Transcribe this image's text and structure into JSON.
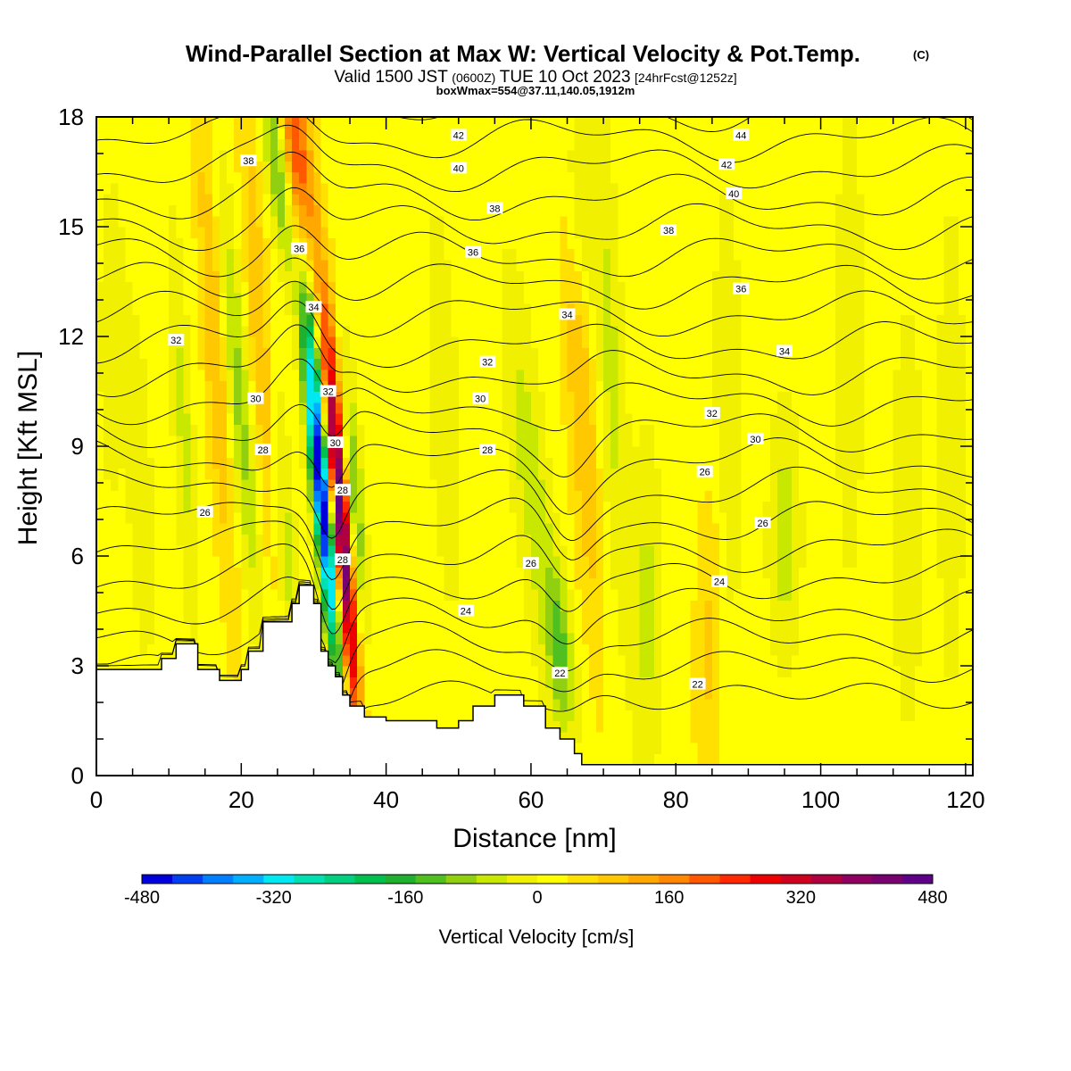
{
  "chart_data": {
    "type": "heatmap",
    "title": "Wind-Parallel Section at Max W: Vertical Velocity & Pot.Temp.",
    "title_mark": "(C)",
    "subtitle_main": "Valid 1500 JST",
    "subtitle_utc": "(0600Z)",
    "subtitle_date": "TUE 10 Oct 2023",
    "subtitle_run": "[24hrFcst@1252z]",
    "subtitle_box": "boxWmax=554@37.11,140.05,1912m",
    "xlabel": "Distance [nm]",
    "ylabel": "Height [Kft MSL]",
    "xlim": [
      0,
      121
    ],
    "ylim": [
      0,
      18
    ],
    "xticks": [
      "0",
      "20",
      "40",
      "60",
      "80",
      "100",
      "120"
    ],
    "yticks": [
      "0",
      "3",
      "6",
      "9",
      "12",
      "15",
      "18"
    ],
    "colorbar": {
      "label": "Vertical Velocity [cm/s]",
      "range": [
        -480,
        480
      ],
      "tick_labels": [
        "-480",
        "-320",
        "-160",
        "0",
        "160",
        "320",
        "480"
      ],
      "colors": [
        "#0000dd",
        "#0040f0",
        "#0080ff",
        "#00b0ff",
        "#00e8f0",
        "#00e0b0",
        "#00d080",
        "#00c050",
        "#20b030",
        "#50c020",
        "#90d010",
        "#c8e800",
        "#f0f000",
        "#ffff00",
        "#ffe000",
        "#ffc800",
        "#ffa800",
        "#ff8800",
        "#ff5800",
        "#ff2800",
        "#ee0000",
        "#d00020",
        "#b00040",
        "#900060",
        "#780070",
        "#600088"
      ]
    },
    "terrain": [
      [
        0,
        2.9
      ],
      [
        9,
        2.9
      ],
      [
        9,
        3.2
      ],
      [
        11,
        3.2
      ],
      [
        11,
        3.6
      ],
      [
        14,
        3.6
      ],
      [
        14,
        2.9
      ],
      [
        17,
        2.9
      ],
      [
        17,
        2.6
      ],
      [
        20,
        2.6
      ],
      [
        20,
        2.9
      ],
      [
        21,
        2.9
      ],
      [
        21,
        3.4
      ],
      [
        23,
        3.4
      ],
      [
        23,
        4.2
      ],
      [
        27,
        4.2
      ],
      [
        27,
        4.7
      ],
      [
        28,
        4.7
      ],
      [
        28,
        5.2
      ],
      [
        30,
        5.2
      ],
      [
        30,
        4.7
      ],
      [
        31,
        4.7
      ],
      [
        31,
        3.4
      ],
      [
        32,
        3.4
      ],
      [
        32,
        3.0
      ],
      [
        33,
        3.0
      ],
      [
        33,
        2.7
      ],
      [
        34,
        2.7
      ],
      [
        34,
        2.2
      ],
      [
        35,
        2.2
      ],
      [
        35,
        1.9
      ],
      [
        37,
        1.9
      ],
      [
        37,
        1.6
      ],
      [
        40,
        1.6
      ],
      [
        40,
        1.5
      ],
      [
        47,
        1.5
      ],
      [
        47,
        1.3
      ],
      [
        50,
        1.3
      ],
      [
        50,
        1.5
      ],
      [
        52,
        1.5
      ],
      [
        52,
        1.9
      ],
      [
        55,
        1.9
      ],
      [
        55,
        2.2
      ],
      [
        59,
        2.2
      ],
      [
        59,
        1.9
      ],
      [
        62,
        1.9
      ],
      [
        62,
        1.3
      ],
      [
        64,
        1.3
      ],
      [
        64,
        1.0
      ],
      [
        66,
        1.0
      ],
      [
        66,
        0.6
      ],
      [
        67,
        0.6
      ],
      [
        67,
        0.3
      ],
      [
        121,
        0.3
      ]
    ],
    "theta_levels": [
      22,
      23,
      24,
      25,
      26,
      27,
      28,
      29,
      30,
      31,
      32,
      33,
      34,
      35,
      36,
      37,
      38,
      39,
      40,
      41,
      42,
      43,
      44
    ],
    "theta_labels": [
      {
        "v": "22",
        "x": 64,
        "y": 2.8
      },
      {
        "v": "22",
        "x": 83,
        "y": 2.5
      },
      {
        "v": "24",
        "x": 51,
        "y": 4.5
      },
      {
        "v": "24",
        "x": 86,
        "y": 5.3
      },
      {
        "v": "26",
        "x": 15,
        "y": 7.2
      },
      {
        "v": "26",
        "x": 60,
        "y": 5.8
      },
      {
        "v": "26",
        "x": 84,
        "y": 8.3
      },
      {
        "v": "26",
        "x": 92,
        "y": 6.9
      },
      {
        "v": "28",
        "x": 23,
        "y": 8.9
      },
      {
        "v": "28",
        "x": 34,
        "y": 7.8
      },
      {
        "v": "28",
        "x": 34,
        "y": 5.9
      },
      {
        "v": "28",
        "x": 54,
        "y": 8.9
      },
      {
        "v": "30",
        "x": 22,
        "y": 10.3
      },
      {
        "v": "30",
        "x": 33,
        "y": 9.1
      },
      {
        "v": "30",
        "x": 53,
        "y": 10.3
      },
      {
        "v": "30",
        "x": 91,
        "y": 9.2
      },
      {
        "v": "32",
        "x": 11,
        "y": 11.9
      },
      {
        "v": "32",
        "x": 32,
        "y": 10.5
      },
      {
        "v": "32",
        "x": 54,
        "y": 11.3
      },
      {
        "v": "32",
        "x": 85,
        "y": 9.9
      },
      {
        "v": "34",
        "x": 30,
        "y": 12.8
      },
      {
        "v": "34",
        "x": 65,
        "y": 12.6
      },
      {
        "v": "34",
        "x": 95,
        "y": 11.6
      },
      {
        "v": "36",
        "x": 28,
        "y": 14.4
      },
      {
        "v": "36",
        "x": 52,
        "y": 14.3
      },
      {
        "v": "36",
        "x": 89,
        "y": 13.3
      },
      {
        "v": "38",
        "x": 21,
        "y": 16.8
      },
      {
        "v": "38",
        "x": 55,
        "y": 15.5
      },
      {
        "v": "38",
        "x": 79,
        "y": 14.9
      },
      {
        "v": "40",
        "x": 50,
        "y": 16.6
      },
      {
        "v": "40",
        "x": 88,
        "y": 15.9
      },
      {
        "v": "42",
        "x": 50,
        "y": 17.5
      },
      {
        "v": "42",
        "x": 87,
        "y": 16.7
      },
      {
        "v": "44",
        "x": 89,
        "y": 17.5
      }
    ],
    "w_features": [
      {
        "x": 31.2,
        "y": 7.5,
        "w": -500,
        "sx": 0.9,
        "sy": 3.3,
        "tilt": -0.45
      },
      {
        "x": 33.8,
        "y": 7.0,
        "w": 470,
        "sx": 0.9,
        "sy": 3.8,
        "tilt": -0.38
      },
      {
        "x": 29.5,
        "y": 12.5,
        "w": -110,
        "sx": 0.8,
        "sy": 2.6,
        "tilt": -0.35
      },
      {
        "x": 35.5,
        "y": 7.5,
        "w": -160,
        "sx": 0.9,
        "sy": 2.5,
        "tilt": -0.3
      },
      {
        "x": 27.8,
        "y": 16.8,
        "w": 220,
        "sx": 1.3,
        "sy": 2.6,
        "tilt": -0.45
      },
      {
        "x": 25.0,
        "y": 16.5,
        "w": -150,
        "sx": 1.0,
        "sy": 2.0,
        "tilt": -0.55
      },
      {
        "x": 19.5,
        "y": 10.5,
        "w": -120,
        "sx": 1.2,
        "sy": 4.2,
        "tilt": -0.42
      },
      {
        "x": 16.5,
        "y": 12.0,
        "w": 100,
        "sx": 1.2,
        "sy": 5.0,
        "tilt": -0.3
      },
      {
        "x": 22.5,
        "y": 12.0,
        "w": 90,
        "sx": 1.1,
        "sy": 5.0,
        "tilt": -0.3
      },
      {
        "x": 26.0,
        "y": 6.5,
        "w": -80,
        "sx": 1.1,
        "sy": 3.0,
        "tilt": -0.3
      },
      {
        "x": 12.0,
        "y": 9.5,
        "w": -70,
        "sx": 1.0,
        "sy": 4.0,
        "tilt": -0.25
      },
      {
        "x": 60.0,
        "y": 8.0,
        "w": -80,
        "sx": 1.8,
        "sy": 4.0,
        "tilt": -0.5
      },
      {
        "x": 64.0,
        "y": 3.5,
        "w": -130,
        "sx": 1.3,
        "sy": 1.6,
        "tilt": -0.4
      },
      {
        "x": 67.0,
        "y": 10.5,
        "w": 90,
        "sx": 1.5,
        "sy": 5.0,
        "tilt": -0.3
      },
      {
        "x": 71.0,
        "y": 11.0,
        "w": -70,
        "sx": 1.4,
        "sy": 5.0,
        "tilt": -0.2
      },
      {
        "x": 66.5,
        "y": 15.5,
        "w": -80,
        "sx": 1.5,
        "sy": 2.2,
        "tilt": -0.3
      },
      {
        "x": 76.0,
        "y": 4.5,
        "w": -70,
        "sx": 1.4,
        "sy": 3.5,
        "tilt": 0
      },
      {
        "x": 85.0,
        "y": 4.0,
        "w": 70,
        "sx": 1.5,
        "sy": 3.2,
        "tilt": 0.1
      },
      {
        "x": 87.0,
        "y": 9.0,
        "w": -60,
        "sx": 1.5,
        "sy": 5.0,
        "tilt": 0
      },
      {
        "x": 95.0,
        "y": 6.5,
        "w": -80,
        "sx": 1.6,
        "sy": 2.5,
        "tilt": 0
      },
      {
        "x": 104.0,
        "y": 12.0,
        "w": -50,
        "sx": 1.5,
        "sy": 5.0,
        "tilt": 0
      },
      {
        "x": 112.0,
        "y": 7.0,
        "w": -60,
        "sx": 1.5,
        "sy": 4.0,
        "tilt": 0
      },
      {
        "x": 118.0,
        "y": 9.0,
        "w": -50,
        "sx": 1.4,
        "sy": 5.0,
        "tilt": 0
      },
      {
        "x": 48.0,
        "y": 10.0,
        "w": -55,
        "sx": 1.5,
        "sy": 4.0,
        "tilt": -0.2
      },
      {
        "x": 6.0,
        "y": 8.0,
        "w": -45,
        "sx": 1.4,
        "sy": 4.0,
        "tilt": -0.2
      },
      {
        "x": 2.0,
        "y": 12.0,
        "w": -55,
        "sx": 1.2,
        "sy": 3.0,
        "tilt": 0
      }
    ]
  }
}
